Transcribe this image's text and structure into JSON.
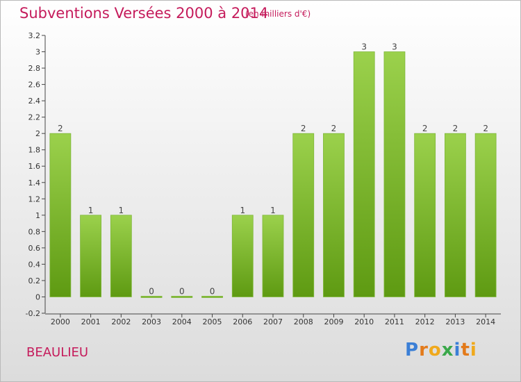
{
  "header": {
    "title": "Subventions Versées 2000 à 2014",
    "subtitle": "(en milliers d'€)"
  },
  "footer": {
    "commune": "BEAULIEU",
    "logo_text": "Proxiti"
  },
  "colors": {
    "title": "#c51b5b",
    "bar_top": "#9bd14c",
    "bar_bottom": "#5e9a12",
    "logo_letters": [
      "#3b7fd6",
      "#e37a1a",
      "#f0a91c",
      "#3aa84a",
      "#3b7fd6",
      "#e37a1a",
      "#f0a91c"
    ]
  },
  "chart_data": {
    "type": "bar",
    "categories": [
      "2000",
      "2001",
      "2002",
      "2003",
      "2004",
      "2005",
      "2006",
      "2007",
      "2008",
      "2009",
      "2010",
      "2011",
      "2012",
      "2013",
      "2014"
    ],
    "values": [
      2,
      1,
      1,
      0,
      0,
      0,
      1,
      1,
      2,
      2,
      3,
      3,
      2,
      2,
      2
    ],
    "data_labels": [
      "2",
      "1",
      "1",
      "0",
      "0",
      "0",
      "1",
      "1",
      "2",
      "2",
      "3",
      "3",
      "2",
      "2",
      "2"
    ],
    "y_ticks": [
      "-0.2",
      "0",
      "0.2",
      "0.4",
      "0.6",
      "0.8",
      "1",
      "1.2",
      "1.4",
      "1.6",
      "1.8",
      "2",
      "2.2",
      "2.4",
      "2.6",
      "2.8",
      "3",
      "3.2"
    ],
    "ylim": [
      -0.2,
      3.2
    ],
    "grid": false,
    "title": "Subventions Versées 2000 à 2014",
    "xlabel": "",
    "ylabel": ""
  }
}
